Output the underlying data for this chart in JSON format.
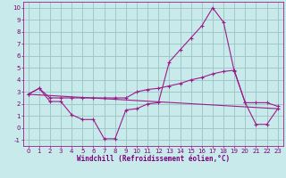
{
  "xlabel": "Windchill (Refroidissement éolien,°C)",
  "bg_color": "#c8eaea",
  "grid_color": "#a0c8c8",
  "line_color": "#9b1c8a",
  "x_ticks": [
    0,
    1,
    2,
    3,
    4,
    5,
    6,
    7,
    8,
    9,
    10,
    11,
    12,
    13,
    14,
    15,
    16,
    17,
    18,
    19,
    20,
    21,
    22,
    23
  ],
  "y_ticks": [
    -1,
    0,
    1,
    2,
    3,
    4,
    5,
    6,
    7,
    8,
    9,
    10
  ],
  "ylim": [
    -1.5,
    10.5
  ],
  "xlim": [
    -0.5,
    23.5
  ],
  "line1_x": [
    0,
    1,
    2,
    3,
    4,
    5,
    6,
    7,
    8,
    9,
    10,
    11,
    12,
    13,
    14,
    15,
    16,
    17,
    18,
    19,
    20,
    21,
    22,
    23
  ],
  "line1_y": [
    2.8,
    3.3,
    2.2,
    2.2,
    1.1,
    0.7,
    0.7,
    -0.9,
    -0.9,
    1.5,
    1.6,
    2.0,
    2.1,
    5.5,
    6.5,
    7.5,
    8.5,
    10.0,
    8.8,
    4.7,
    2.1,
    0.3,
    0.3,
    1.6
  ],
  "line2_x": [
    0,
    1,
    2,
    3,
    4,
    5,
    6,
    7,
    8,
    9,
    10,
    11,
    12,
    13,
    14,
    15,
    16,
    17,
    18,
    19,
    20,
    21,
    22,
    23
  ],
  "line2_y": [
    2.8,
    3.3,
    2.5,
    2.5,
    2.5,
    2.5,
    2.5,
    2.5,
    2.5,
    2.5,
    3.0,
    3.2,
    3.3,
    3.5,
    3.7,
    4.0,
    4.2,
    4.5,
    4.7,
    4.8,
    2.1,
    2.1,
    2.1,
    1.8
  ],
  "line3_x": [
    0,
    23
  ],
  "line3_y": [
    2.8,
    1.6
  ],
  "tick_color": "#7b007b",
  "label_fontsize": 5,
  "xlabel_fontsize": 5.5
}
